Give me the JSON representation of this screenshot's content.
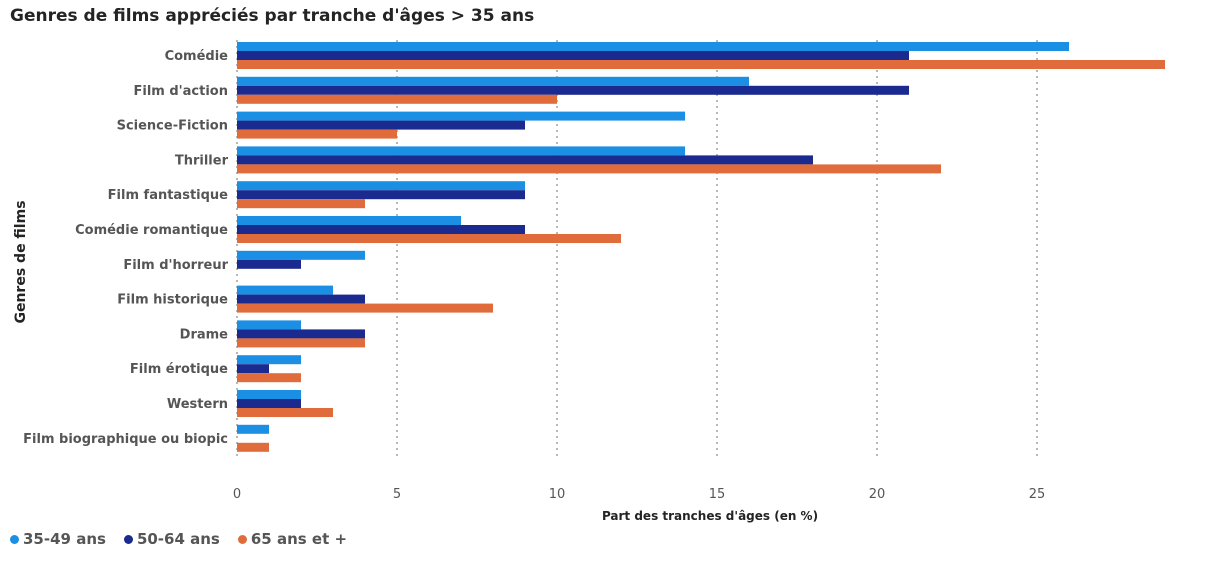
{
  "chart_data": {
    "type": "bar",
    "orientation": "horizontal",
    "title": "Genres de films appréciés par tranche d'âges > 35 ans",
    "xlabel": "Part des tranches d'âges (en %)",
    "ylabel": "Genres de films",
    "xlim": [
      0,
      29.5
    ],
    "xticks": [
      0,
      5,
      10,
      15,
      20,
      25
    ],
    "grid": "vertical-dotted",
    "legend_position": "bottom-left",
    "categories": [
      "Comédie",
      "Film d'action",
      "Science-Fiction",
      "Thriller",
      "Film fantastique",
      "Comédie romantique",
      "Film d'horreur",
      "Film historique",
      "Drame",
      "Film érotique",
      "Western",
      "Film biographique ou biopic"
    ],
    "series": [
      {
        "name": "35-49 ans",
        "color": "#1a8fe3",
        "values": [
          26,
          16,
          14,
          14,
          9,
          7,
          4,
          3,
          2,
          2,
          2,
          1
        ]
      },
      {
        "name": "50-64 ans",
        "color": "#1b2a8f",
        "values": [
          21,
          21,
          9,
          18,
          9,
          9,
          2,
          4,
          4,
          1,
          2,
          0
        ]
      },
      {
        "name": "65 ans et +",
        "color": "#e06c3c",
        "values": [
          29,
          10,
          5,
          22,
          4,
          12,
          0,
          8,
          4,
          2,
          3,
          1
        ]
      }
    ]
  }
}
